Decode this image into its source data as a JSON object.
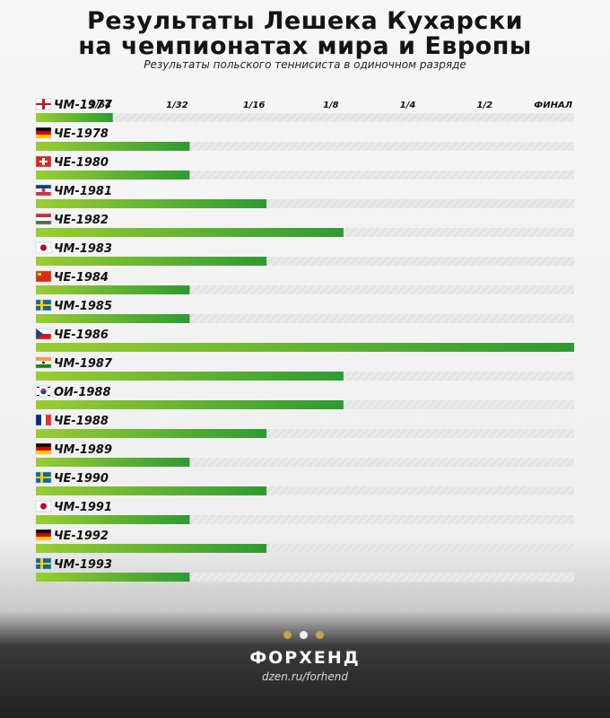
{
  "header": {
    "title_line1": "Результаты Лешека Кухарски",
    "title_line2": "на чемпионатах мира и Европы",
    "subtitle": "Результаты польского теннисиста в одиночном разряде"
  },
  "colors": {
    "bar_start": "#9acd32",
    "bar_end": "#2e9a33",
    "track": "#dcdcdc",
    "text": "#111111"
  },
  "chart_data": {
    "type": "bar",
    "orientation": "horizontal",
    "stages": [
      "1/64",
      "1/32",
      "1/16",
      "1/8",
      "1/4",
      "1/2",
      "ФИНАЛ"
    ],
    "stage_scale": [
      1,
      2,
      3,
      4,
      5,
      6,
      7
    ],
    "xlim": [
      0,
      7
    ],
    "categories": [
      "ЧМ-1977",
      "ЧЕ-1978",
      "ЧЕ-1980",
      "ЧМ-1981",
      "ЧЕ-1982",
      "ЧМ-1983",
      "ЧЕ-1984",
      "ЧМ-1985",
      "ЧЕ-1986",
      "ЧМ-1987",
      "ОИ-1988",
      "ЧЕ-1988",
      "ЧМ-1989",
      "ЧЕ-1990",
      "ЧМ-1991",
      "ЧЕ-1992",
      "ЧМ-1993"
    ],
    "flags": [
      "england",
      "germany",
      "switzerland",
      "yugoslavia",
      "hungary",
      "japan",
      "china",
      "sweden",
      "czech",
      "india",
      "south-korea",
      "france",
      "germany",
      "sweden",
      "japan",
      "germany",
      "sweden"
    ],
    "values": [
      1,
      2,
      2,
      3,
      4,
      3,
      2,
      2,
      7,
      4,
      4,
      3,
      2,
      3,
      2,
      3,
      2
    ],
    "grid": false,
    "legend": "none"
  },
  "footer": {
    "brand": "ФОРХЕНД",
    "url": "dzen.ru/forhend",
    "dot_colors": [
      "#c9a24a",
      "#f0f0f0",
      "#c9a24a"
    ]
  }
}
